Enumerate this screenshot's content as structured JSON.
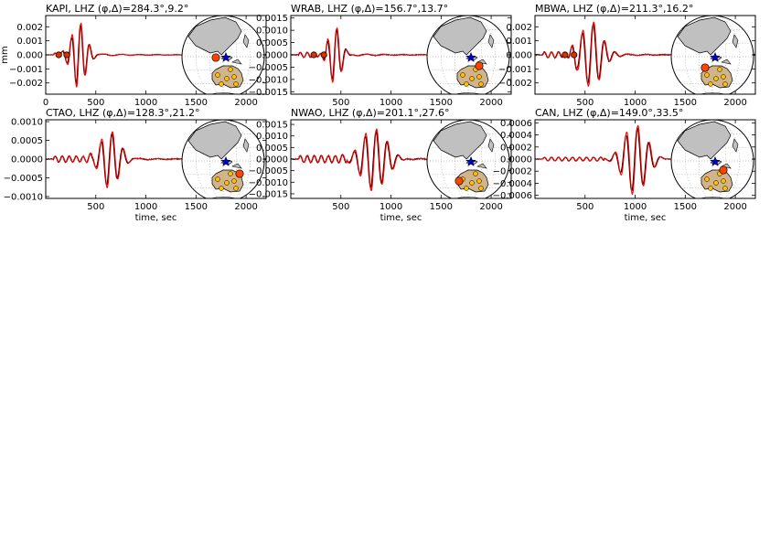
{
  "figure": {
    "ylabel": "mm",
    "xlabel": "time, sec"
  },
  "colors": {
    "data": "#000000",
    "synthetic": "#ff0000",
    "marker": "#e03000",
    "land": "#c0c0c0",
    "australia": "#d2b48c",
    "station": "#ff4500",
    "station_other": "#ffc000",
    "event": "#0000cc"
  },
  "chart_data": [
    {
      "type": "line",
      "title": "KAPI, LHZ (φ,Δ)=284.3°,9.2°",
      "xlim": [
        0,
        2200
      ],
      "ylim": [
        -0.0028,
        0.0028
      ],
      "xticks": [
        0,
        500,
        1000,
        1500,
        2000
      ],
      "xtick_labels": [
        "0",
        "500",
        "1000",
        "1500",
        "2000"
      ],
      "yticks": [
        -0.002,
        -0.001,
        0.0,
        0.001,
        0.002
      ],
      "ytick_labels": [
        "−0.002",
        "−0.001",
        "0.000",
        "0.001",
        "0.002"
      ],
      "show_ylabel": true,
      "show_xlabel": false,
      "markers_x": [
        130,
        210
      ],
      "waveform": {
        "onset": 240,
        "center": 330,
        "period": 90,
        "decay": 70,
        "amp": 0.0024,
        "pre_amp": 0.00012
      },
      "series": [],
      "map": {
        "station_lon_offset": 0,
        "station_position": "north-west"
      }
    },
    {
      "type": "line",
      "title": "WRAB, LHZ (φ,Δ)=156.7°,13.7°",
      "xlim": [
        0,
        2200
      ],
      "ylim": [
        -0.0016,
        0.0016
      ],
      "xticks": [
        500,
        1000,
        1500,
        2000
      ],
      "xtick_labels": [
        "500",
        "1000",
        "1500",
        "2000"
      ],
      "yticks": [
        -0.0015,
        -0.001,
        -0.0005,
        0.0,
        0.0005,
        0.001,
        0.0015
      ],
      "ytick_labels": [
        "−0.0015",
        "−0.0010",
        "−0.0005",
        "0.0000",
        "0.0005",
        "0.0010",
        "0.0015"
      ],
      "show_ylabel": false,
      "show_xlabel": false,
      "markers_x": [
        230,
        330
      ],
      "waveform": {
        "onset": 330,
        "center": 440,
        "period": 95,
        "decay": 60,
        "amp": 0.0012,
        "pre_amp": 0.0001
      },
      "series": [],
      "map": {
        "station_position": "south-east"
      }
    },
    {
      "type": "line",
      "title": "MBWA, LHZ (φ,Δ)=211.3°,16.2°",
      "xlim": [
        0,
        2200
      ],
      "ylim": [
        -0.0028,
        0.0028
      ],
      "xticks": [
        500,
        1000,
        1500,
        2000
      ],
      "xtick_labels": [
        "500",
        "1000",
        "1500",
        "2000"
      ],
      "yticks": [
        -0.002,
        -0.001,
        0.0,
        0.001,
        0.002
      ],
      "ytick_labels": [
        "−0.002",
        "−0.001",
        "0.000",
        "0.001",
        "0.002"
      ],
      "show_ylabel": false,
      "show_xlabel": false,
      "markers_x": [
        300,
        390
      ],
      "waveform": {
        "onset": 380,
        "center": 560,
        "period": 110,
        "decay": 110,
        "amp": 0.0023,
        "pre_amp": 0.0002
      },
      "series": [],
      "map": {
        "station_position": "west"
      }
    },
    {
      "type": "line",
      "title": "CTAO, LHZ (φ,Δ)=128.3°,21.2°",
      "xlim": [
        0,
        2200
      ],
      "ylim": [
        -0.00105,
        0.00105
      ],
      "xticks": [
        500,
        1000,
        1500,
        2000
      ],
      "xtick_labels": [
        "500",
        "1000",
        "1500",
        "2000"
      ],
      "yticks": [
        -0.001,
        -0.0005,
        0.0,
        0.0005,
        0.001
      ],
      "ytick_labels": [
        "−0.0010",
        "−0.0005",
        "0.0000",
        "0.0005",
        "0.0010"
      ],
      "show_ylabel": false,
      "show_xlabel": true,
      "markers_x": [],
      "waveform": {
        "onset": 420,
        "center": 640,
        "period": 110,
        "decay": 90,
        "amp": 0.0008,
        "pre_amp": 8e-05
      },
      "series": [],
      "map": {
        "station_position": "east"
      }
    },
    {
      "type": "line",
      "title": "NWAO, LHZ (φ,Δ)=201.1°,27.6°",
      "xlim": [
        0,
        2200
      ],
      "ylim": [
        -0.0017,
        0.0017
      ],
      "xticks": [
        500,
        1000,
        1500,
        2000
      ],
      "xtick_labels": [
        "500",
        "1000",
        "1500",
        "2000"
      ],
      "yticks": [
        -0.0015,
        -0.001,
        -0.0005,
        0.0,
        0.0005,
        0.001,
        0.0015
      ],
      "ytick_labels": [
        "−0.0015",
        "−0.0010",
        "−0.0005",
        "0.0000",
        "0.0005",
        "0.0010",
        "0.0015"
      ],
      "show_ylabel": false,
      "show_xlabel": true,
      "markers_x": [],
      "waveform": {
        "onset": 520,
        "center": 830,
        "period": 110,
        "decay": 120,
        "amp": 0.0014,
        "pre_amp": 0.00015
      },
      "series": [],
      "map": {
        "station_position": "south-west"
      }
    },
    {
      "type": "line",
      "title": "CAN, LHZ (φ,Δ)=149.0°,33.5°",
      "xlim": [
        0,
        2200
      ],
      "ylim": [
        -0.00065,
        0.00065
      ],
      "xticks": [
        500,
        1000,
        1500,
        2000
      ],
      "xtick_labels": [
        "500",
        "1000",
        "1500",
        "2000"
      ],
      "yticks": [
        -0.0006,
        -0.0004,
        -0.0002,
        0.0,
        0.0002,
        0.0004,
        0.0006
      ],
      "ytick_labels": [
        "−0.0006",
        "−0.0004",
        "−0.0002",
        "0.0000",
        "0.0002",
        "0.0004",
        "0.0006"
      ],
      "show_ylabel": false,
      "show_xlabel": true,
      "markers_x": [],
      "waveform": {
        "onset": 650,
        "center": 1000,
        "period": 115,
        "decay": 110,
        "amp": 0.0006,
        "pre_amp": 3e-05
      },
      "series": [],
      "map": {
        "station_position": "south-east"
      }
    }
  ]
}
